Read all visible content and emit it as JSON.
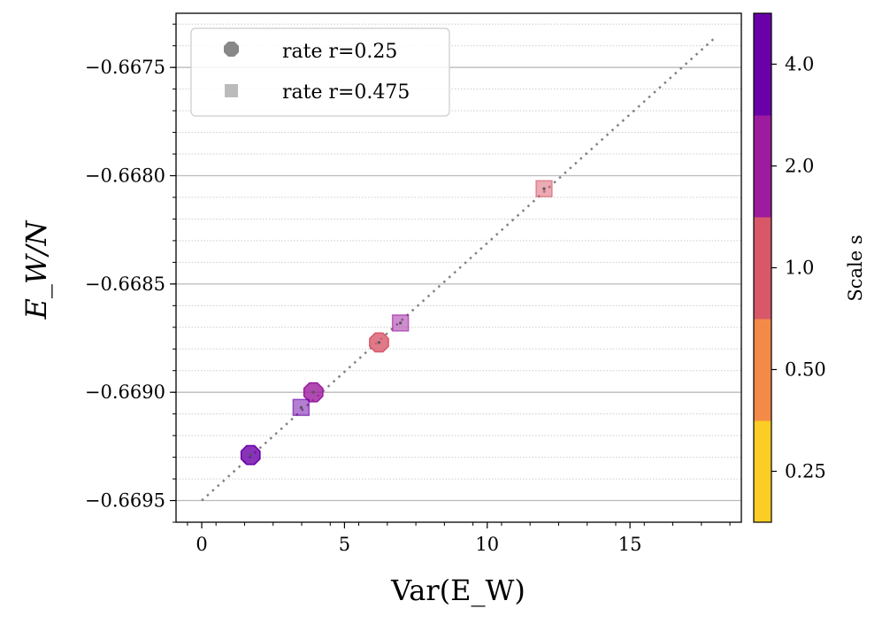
{
  "chart_data": {
    "type": "scatter",
    "xlabel": "Var(E_W)",
    "ylabel": "E_W/N",
    "xlim": [
      -0.9,
      18.9
    ],
    "ylim": [
      -0.6696,
      -0.66725
    ],
    "xticks": [
      "0",
      "5",
      "10",
      "15"
    ],
    "xtick_values": [
      0,
      5,
      10,
      15
    ],
    "yticks": [
      "−0.6675",
      "−0.6680",
      "−0.6685",
      "−0.6690",
      "−0.6695"
    ],
    "ytick_values": [
      -0.6675,
      -0.668,
      -0.6685,
      -0.669,
      -0.6695
    ],
    "grid": "horizontal major solid, minor dotted",
    "legend_position": "top-left",
    "legend": [
      {
        "label": "rate r=0.25",
        "marker": "octagon"
      },
      {
        "label": "rate r=0.475",
        "marker": "square"
      }
    ],
    "series": [
      {
        "name": "rate r=0.25",
        "marker": "octagon",
        "points": [
          {
            "x": 1.71,
            "y": -0.66929,
            "scale": 4.0
          },
          {
            "x": 3.91,
            "y": -0.669,
            "scale": 2.0
          },
          {
            "x": 6.21,
            "y": -0.66877,
            "scale": 1.0
          }
        ]
      },
      {
        "name": "rate r=0.475",
        "marker": "square",
        "points": [
          {
            "x": 3.48,
            "y": -0.66907,
            "scale": 4.0
          },
          {
            "x": 6.96,
            "y": -0.66868,
            "scale": 2.0
          },
          {
            "x": 11.99,
            "y": -0.66806,
            "scale": 1.0
          }
        ]
      }
    ],
    "fit_line": {
      "x": [
        0,
        18.0
      ],
      "y": [
        -0.6695,
        -0.66736
      ],
      "style": "dotted",
      "color": "#808080"
    },
    "colorbar": {
      "label": "Scale s",
      "ticks": [
        "0.25",
        "0.50",
        "1.0",
        "2.0",
        "4.0"
      ],
      "values": [
        0.25,
        0.5,
        1.0,
        2.0,
        4.0
      ],
      "colors": [
        "#fccd25",
        "#f48a48",
        "#d8586a",
        "#9c1b9e",
        "#6a00a8"
      ]
    }
  }
}
